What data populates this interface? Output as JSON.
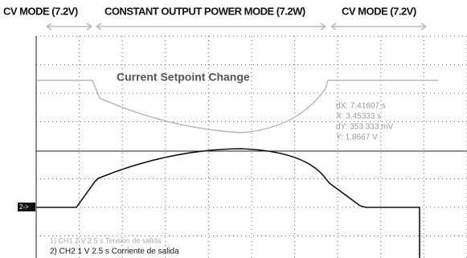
{
  "header": {
    "labels": [
      "CV MODE (7.2V)",
      "CONSTANT OUTPUT POWER MODE (7.2W)",
      "CV MODE (7.2V)"
    ]
  },
  "annotation": "Current Setpoint Change",
  "cursor": {
    "lines": [
      "dX: 7.41607  s",
      "X: 3.45333  s",
      "dY: 353.333 mV",
      "Y: 1.8667  V"
    ]
  },
  "marker": "2->",
  "channels": [
    "1) CH1   2 V   2.5 s Tension de salida",
    "2) CH2   1 V   2.5 s Corriente de salida"
  ]
}
